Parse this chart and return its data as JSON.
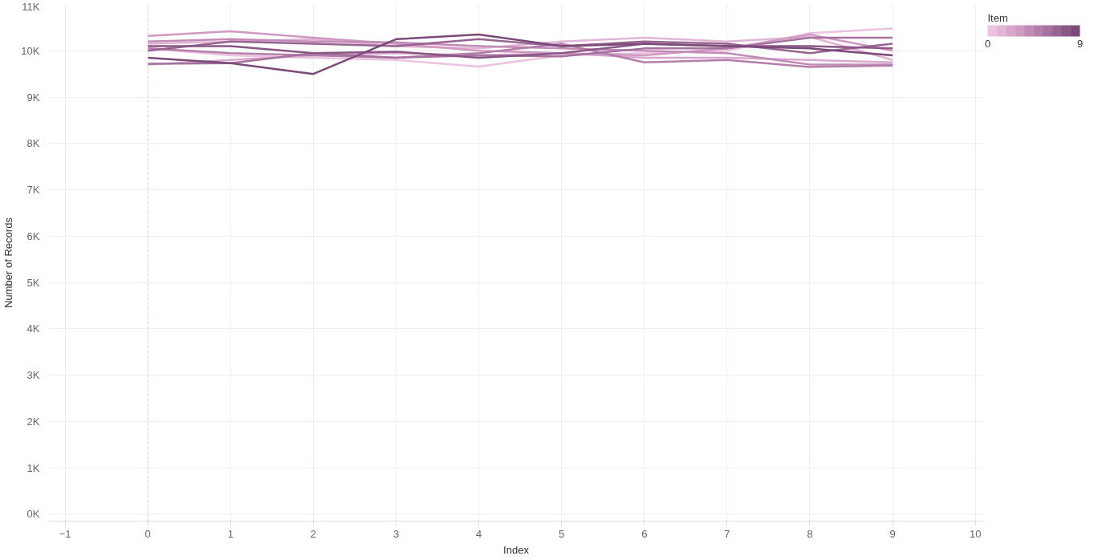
{
  "chart_data": {
    "type": "line",
    "xlabel": "Index",
    "ylabel": "Number of Records",
    "clabel": "Item",
    "clim": [
      0,
      9
    ],
    "cticks": [
      0,
      9
    ],
    "x": [
      0,
      1,
      2,
      3,
      4,
      5,
      6,
      7,
      8,
      9
    ],
    "xlim": [
      -1.2,
      10.1
    ],
    "xticks": [
      -1,
      0,
      1,
      2,
      3,
      4,
      5,
      6,
      7,
      8,
      9,
      10
    ],
    "ylim": [
      -150,
      11000
    ],
    "yticks": [
      {
        "value": 0,
        "label": "0K"
      },
      {
        "value": 1000,
        "label": "1K"
      },
      {
        "value": 2000,
        "label": "2K"
      },
      {
        "value": 3000,
        "label": "3K"
      },
      {
        "value": 4000,
        "label": "4K"
      },
      {
        "value": 5000,
        "label": "5K"
      },
      {
        "value": 6000,
        "label": "6K"
      },
      {
        "value": 7000,
        "label": "7K"
      },
      {
        "value": 8000,
        "label": "8K"
      },
      {
        "value": 9000,
        "label": "9K"
      },
      {
        "value": 10000,
        "label": "10K"
      },
      {
        "value": 11000,
        "label": "11K"
      }
    ],
    "grid": true,
    "line_style": "solid",
    "marker": "none",
    "ref_lines": [
      {
        "axis": "x",
        "value": 0,
        "label": null,
        "color": "#c8c8c8",
        "line_style": "dotted"
      }
    ],
    "series": [
      {
        "color": "#ebc3e0",
        "values": [
          10050,
          9900,
          9850,
          9800,
          9660,
          9900,
          9950,
          10000,
          10380,
          10480
        ]
      },
      {
        "color": "#e2b5d6",
        "values": [
          10150,
          10200,
          10250,
          10100,
          10050,
          10200,
          10280,
          10200,
          10300,
          9800
        ]
      },
      {
        "color": "#d9a7cc",
        "values": [
          9700,
          9800,
          9900,
          9950,
          9900,
          9950,
          9850,
          9850,
          9800,
          9750
        ]
      },
      {
        "color": "#cf99c2",
        "values": [
          10320,
          10420,
          10280,
          10150,
          10000,
          9950,
          9900,
          10050,
          10350,
          10000
        ]
      },
      {
        "color": "#c18bb6",
        "values": [
          10200,
          10250,
          10200,
          10180,
          10100,
          10050,
          10000,
          9950,
          9700,
          9700
        ]
      },
      {
        "color": "#b37eaa",
        "values": [
          10050,
          9950,
          9900,
          9850,
          9950,
          10150,
          9750,
          9800,
          9650,
          9680
        ]
      },
      {
        "color": "#a5719e",
        "values": [
          9720,
          9730,
          9950,
          9850,
          9900,
          9880,
          10050,
          10050,
          10280,
          10280
        ]
      },
      {
        "color": "#976492",
        "values": [
          10000,
          10200,
          10150,
          10100,
          10250,
          10100,
          10200,
          10150,
          9950,
          10150
        ]
      },
      {
        "color": "#895786",
        "values": [
          10100,
          10100,
          9950,
          9980,
          9850,
          9950,
          10150,
          10100,
          10100,
          10050
        ]
      },
      {
        "color": "#7b4a78",
        "values": [
          9850,
          9730,
          9500,
          10250,
          10350,
          10100,
          10150,
          10100,
          10050,
          9900
        ]
      }
    ]
  }
}
